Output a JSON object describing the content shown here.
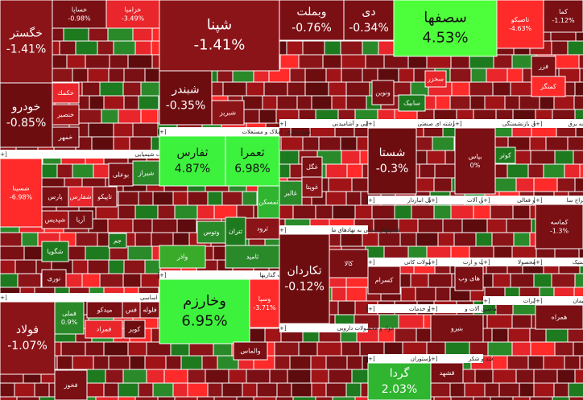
{
  "expand_marker": "[+]",
  "headers": [
    "محصولات شیمیایی",
    "فلزات اساسی",
    "انبوه سازی، املاک و مستغلات",
    "سرمایه گذاریها",
    "محصولات غذایی و آشامیدنی",
    "فعالیتهای کمکی به نهادهای ما",
    "مواد و محصولات دارویی",
    "شرکتهای چند رشته ای صنعتی",
    "بیمه و صندوق بازنشستگی",
    "عرضه برق",
    "حمل ونقل انباردار",
    "ماشین آلات",
    "رایانه و فعالی",
    "استخراج سا",
    "سایر محصولات کانی",
    "اطلاعات و ارت",
    "تولید محصولا",
    "لاستیک",
    "زراعت و خدمات",
    "ماشین آلات و",
    "مخابرات",
    "سیمان",
    "هتل و رستوران",
    "قند و شکر"
  ],
  "tiles": [
    {
      "name": "خگستر",
      "change": "-1.41%"
    },
    {
      "name": "خساپا",
      "change": "-0.98%"
    },
    {
      "name": "خزامیا",
      "change": "-3.49%"
    },
    {
      "name": "خودرو",
      "change": "-0.85%"
    },
    {
      "name": "خکمك"
    },
    {
      "name": "خنصير"
    },
    {
      "name": "خمهر"
    },
    {
      "name": "شسینا",
      "change": "-6.98%"
    },
    {
      "name": "پارس"
    },
    {
      "name": "شیراز"
    },
    {
      "name": "بوعلی"
    },
    {
      "name": "شفارس"
    },
    {
      "name": "تاپیکو"
    },
    {
      "name": "آریا"
    },
    {
      "name": "شپدیس"
    },
    {
      "name": "شگویا"
    },
    {
      "name": "نوری"
    },
    {
      "name": "جم"
    },
    {
      "name": "فولاد",
      "change": "-1.07%"
    },
    {
      "name": "فملی",
      "change": "0.9%"
    },
    {
      "name": "میدکو"
    },
    {
      "name": "فس"
    },
    {
      "name": "فلوله"
    },
    {
      "name": "کویر"
    },
    {
      "name": "فمراد"
    },
    {
      "name": "فخوز"
    },
    {
      "name": "شپنا",
      "change": "-1.41%"
    },
    {
      "name": "شبندر",
      "change": "-0.35%"
    },
    {
      "name": "شبریز"
    },
    {
      "name": "ثفارس",
      "change": "4.87%"
    },
    {
      "name": "ثعمرا",
      "change": "6.98%"
    },
    {
      "name": "ثتران"
    },
    {
      "name": "ثمسکن"
    },
    {
      "name": "وتوس"
    },
    {
      "name": "ثرود"
    },
    {
      "name": "ثامید"
    },
    {
      "name": "واذر"
    },
    {
      "name": "وخارزم",
      "change": "6.95%"
    },
    {
      "name": "وسپا",
      "change": "-3.71%"
    },
    {
      "name": "والماس"
    },
    {
      "name": "وبملت",
      "change": "-0.76%"
    },
    {
      "name": "دی",
      "change": "-0.34%"
    },
    {
      "name": "ونوین"
    },
    {
      "name": "غگل"
    },
    {
      "name": "غویتا"
    },
    {
      "name": "غالبر"
    },
    {
      "name": "تکاردان",
      "change": "-0.12%"
    },
    {
      "name": "کالا"
    },
    {
      "name": "سصفها",
      "change": "4.53%"
    },
    {
      "name": "تاصیکو",
      "change": "-4.63%"
    },
    {
      "name": "کما",
      "change": "-1.12%"
    },
    {
      "name": "سخزر"
    },
    {
      "name": "سابیک"
    },
    {
      "name": "فزر"
    },
    {
      "name": "کمنگز"
    },
    {
      "name": "شستا",
      "change": "-0.3%"
    },
    {
      "name": "بپاس",
      "change": "0%"
    },
    {
      "name": "کوثر"
    },
    {
      "name": "کماسه",
      "change": "-1.3%"
    },
    {
      "name": "کسرام"
    },
    {
      "name": "های وب"
    },
    {
      "name": "همراه"
    },
    {
      "name": "بنیرو"
    },
    {
      "name": "گردا",
      "change": "2.03%"
    },
    {
      "name": "قشهد"
    }
  ]
}
